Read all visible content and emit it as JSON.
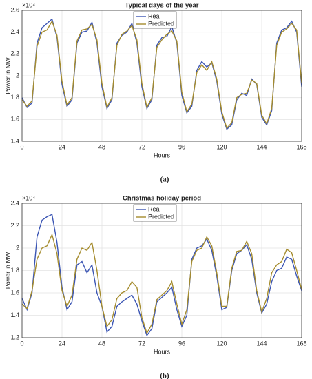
{
  "chart_data": [
    {
      "type": "line",
      "title": "Typical days of the year",
      "xlabel": "Hours",
      "ylabel": "Power in MW",
      "exponent_label": "×10⁴",
      "caption": "(a)",
      "x": [
        0,
        3,
        6,
        9,
        12,
        15,
        18,
        21,
        24,
        27,
        30,
        33,
        36,
        39,
        42,
        45,
        48,
        51,
        54,
        57,
        60,
        63,
        66,
        69,
        72,
        75,
        78,
        81,
        84,
        87,
        90,
        93,
        96,
        99,
        102,
        105,
        108,
        111,
        114,
        117,
        120,
        123,
        126,
        129,
        132,
        135,
        138,
        141,
        144,
        147,
        150,
        153,
        156,
        159,
        162,
        165,
        168
      ],
      "series": [
        {
          "name": "Real",
          "color": "#3c56b4",
          "values": [
            1.8,
            1.71,
            1.75,
            2.3,
            2.44,
            2.48,
            2.52,
            2.35,
            1.92,
            1.72,
            1.78,
            2.3,
            2.4,
            2.41,
            2.49,
            2.3,
            1.9,
            1.7,
            1.78,
            2.3,
            2.37,
            2.4,
            2.48,
            2.3,
            1.9,
            1.7,
            1.78,
            2.28,
            2.35,
            2.36,
            2.45,
            2.3,
            1.82,
            1.66,
            1.72,
            2.05,
            2.13,
            2.08,
            2.12,
            1.95,
            1.65,
            1.51,
            1.55,
            1.78,
            1.84,
            1.82,
            1.97,
            1.92,
            1.62,
            1.55,
            1.68,
            2.3,
            2.42,
            2.44,
            2.5,
            2.4,
            1.9
          ]
        },
        {
          "name": "Predicted",
          "color": "#a58c2e",
          "values": [
            1.78,
            1.72,
            1.77,
            2.27,
            2.4,
            2.42,
            2.5,
            2.37,
            1.95,
            1.73,
            1.8,
            2.32,
            2.42,
            2.43,
            2.47,
            2.33,
            1.93,
            1.71,
            1.8,
            2.28,
            2.38,
            2.41,
            2.46,
            2.33,
            1.93,
            1.71,
            1.8,
            2.26,
            2.33,
            2.38,
            2.41,
            2.32,
            1.85,
            1.67,
            1.74,
            2.03,
            2.1,
            2.05,
            2.13,
            1.97,
            1.67,
            1.52,
            1.57,
            1.8,
            1.83,
            1.84,
            1.96,
            1.93,
            1.64,
            1.56,
            1.7,
            2.28,
            2.4,
            2.43,
            2.48,
            2.42,
            1.93
          ]
        }
      ],
      "xlim": [
        0,
        168
      ],
      "xticks": [
        0,
        24,
        48,
        72,
        96,
        120,
        144,
        168
      ],
      "ylim": [
        1.4,
        2.6
      ],
      "yticks": [
        1.4,
        1.6,
        1.8,
        2,
        2.2,
        2.4,
        2.6
      ],
      "grid": true,
      "legend": "top"
    },
    {
      "type": "line",
      "title": "Christmas holiday period",
      "xlabel": "Hours",
      "ylabel": "Power in MW",
      "exponent_label": "×10⁴",
      "caption": "(b)",
      "x": [
        0,
        3,
        6,
        9,
        12,
        15,
        18,
        21,
        24,
        27,
        30,
        33,
        36,
        39,
        42,
        45,
        48,
        51,
        54,
        57,
        60,
        63,
        66,
        69,
        72,
        75,
        78,
        81,
        84,
        87,
        90,
        93,
        96,
        99,
        102,
        105,
        108,
        111,
        114,
        117,
        120,
        123,
        126,
        129,
        132,
        135,
        138,
        141,
        144,
        147,
        150,
        153,
        156,
        159,
        162,
        165,
        168
      ],
      "series": [
        {
          "name": "Real",
          "color": "#3c56b4",
          "values": [
            1.55,
            1.45,
            1.6,
            2.1,
            2.25,
            2.28,
            2.3,
            2.05,
            1.65,
            1.45,
            1.52,
            1.85,
            1.88,
            1.78,
            1.85,
            1.6,
            1.48,
            1.25,
            1.3,
            1.48,
            1.52,
            1.55,
            1.58,
            1.5,
            1.35,
            1.22,
            1.28,
            1.52,
            1.56,
            1.6,
            1.65,
            1.45,
            1.3,
            1.4,
            1.9,
            2.0,
            2.02,
            2.08,
            1.98,
            1.75,
            1.45,
            1.47,
            1.8,
            1.95,
            1.98,
            2.03,
            1.9,
            1.6,
            1.42,
            1.5,
            1.7,
            1.8,
            1.82,
            1.92,
            1.9,
            1.75,
            1.62
          ]
        },
        {
          "name": "Predicted",
          "color": "#a58c2e",
          "values": [
            1.5,
            1.46,
            1.62,
            1.9,
            2.0,
            2.02,
            2.12,
            1.95,
            1.62,
            1.48,
            1.58,
            1.9,
            2.0,
            1.98,
            2.05,
            1.8,
            1.48,
            1.3,
            1.36,
            1.55,
            1.6,
            1.62,
            1.7,
            1.65,
            1.38,
            1.24,
            1.32,
            1.54,
            1.58,
            1.62,
            1.7,
            1.5,
            1.32,
            1.45,
            1.88,
            1.98,
            2.0,
            2.1,
            2.02,
            1.78,
            1.48,
            1.48,
            1.82,
            1.97,
            1.98,
            2.06,
            1.95,
            1.62,
            1.43,
            1.55,
            1.78,
            1.85,
            1.88,
            1.99,
            1.96,
            1.8,
            1.63
          ]
        }
      ],
      "xlim": [
        0,
        168
      ],
      "xticks": [
        0,
        24,
        48,
        72,
        96,
        120,
        144,
        168
      ],
      "ylim": [
        1.2,
        2.4
      ],
      "yticks": [
        1.2,
        1.4,
        1.6,
        1.8,
        2,
        2.2,
        2.4
      ],
      "grid": true,
      "legend": "top"
    }
  ]
}
